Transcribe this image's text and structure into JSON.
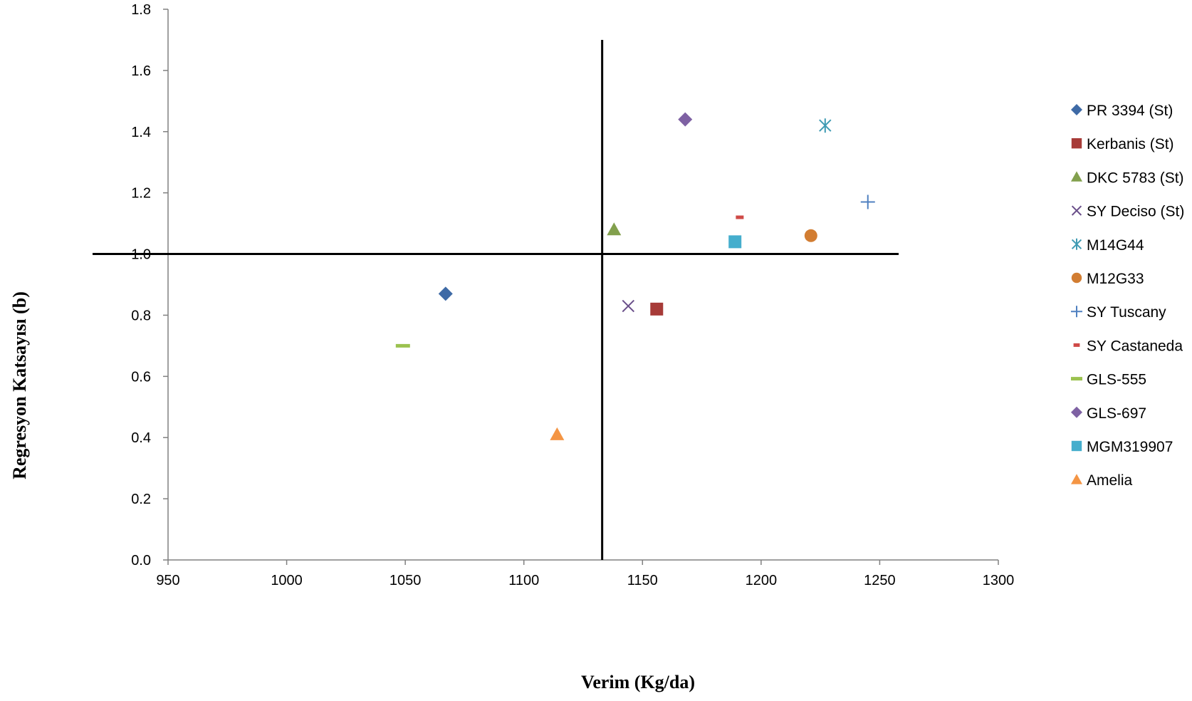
{
  "chart_data": {
    "type": "scatter",
    "title": "",
    "xlabel": "Verim (Kg/da)",
    "ylabel": "Regresyon Katsayısı (b)",
    "xlim": [
      950,
      1300
    ],
    "ylim": [
      0.0,
      1.8
    ],
    "x_ticks": [
      "950",
      "1000",
      "1050",
      "1100",
      "1150",
      "1200",
      "1250",
      "1300"
    ],
    "y_ticks": [
      "0.0",
      "0.2",
      "0.4",
      "0.6",
      "0.8",
      "1.0",
      "1.2",
      "1.4",
      "1.6",
      "1.8"
    ],
    "grid": false,
    "legend_position": "right",
    "reference_lines": {
      "vertical_x": 1133,
      "horizontal_y": 1.0
    },
    "series": [
      {
        "name": "PR 3394 (St)",
        "marker": "diamond",
        "color": "#3e6aa6",
        "x": 1067,
        "y": 0.87
      },
      {
        "name": "Kerbanis (St)",
        "marker": "square",
        "color": "#a73b38",
        "x": 1156,
        "y": 0.82
      },
      {
        "name": "DKC 5783 (St)",
        "marker": "triangle",
        "color": "#82a04d",
        "x": 1138,
        "y": 1.08
      },
      {
        "name": "SY Deciso (St)",
        "marker": "x",
        "color": "#6a4f8a",
        "x": 1144,
        "y": 0.83
      },
      {
        "name": "M14G44",
        "marker": "star",
        "color": "#3f9bb3",
        "x": 1227,
        "y": 1.42
      },
      {
        "name": "M12G33",
        "marker": "circle",
        "color": "#d27d32",
        "x": 1221,
        "y": 1.06
      },
      {
        "name": "SY Tuscany",
        "marker": "plus",
        "color": "#4f80c0",
        "x": 1245,
        "y": 1.17
      },
      {
        "name": "SY Castaneda",
        "marker": "short-dash",
        "color": "#cf4a47",
        "x": 1191,
        "y": 1.12
      },
      {
        "name": "GLS-555",
        "marker": "long-dash",
        "color": "#9bc24f",
        "x": 1049,
        "y": 0.7
      },
      {
        "name": "GLS-697",
        "marker": "diamond",
        "color": "#7e61a3",
        "x": 1168,
        "y": 1.44
      },
      {
        "name": "MGM319907",
        "marker": "square",
        "color": "#45aecd",
        "x": 1189,
        "y": 1.04
      },
      {
        "name": "Amelia",
        "marker": "triangle",
        "color": "#f49544",
        "x": 1114,
        "y": 0.41
      }
    ]
  }
}
